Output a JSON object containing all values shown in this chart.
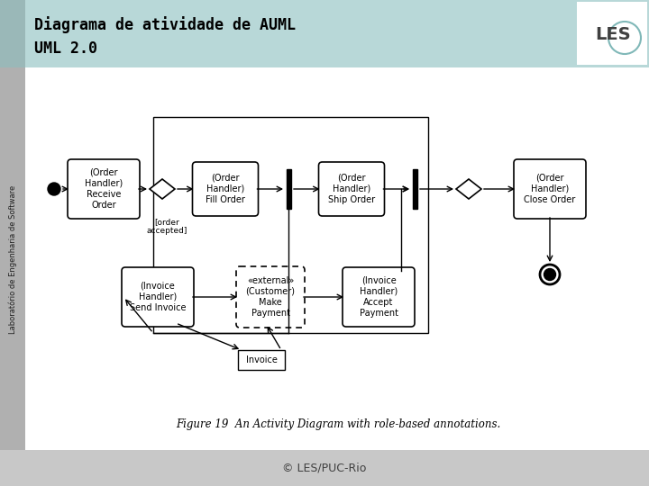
{
  "title_line1": "Diagrama de atividade de AUML",
  "title_line2": "UML 2.0",
  "footer": "© LES/PUC-Rio",
  "sidebar_text": "Laboratório de Engenharia de Software",
  "caption": "Figure 19  An Activity Diagram with role-based annotations.",
  "header_bg": "#b8d8d8",
  "content_bg": "#ffffff",
  "footer_bg": "#c8c8c8",
  "sidebar_bg": "#b0b0b0",
  "header_sidebar_bg": "#9ab0b0"
}
